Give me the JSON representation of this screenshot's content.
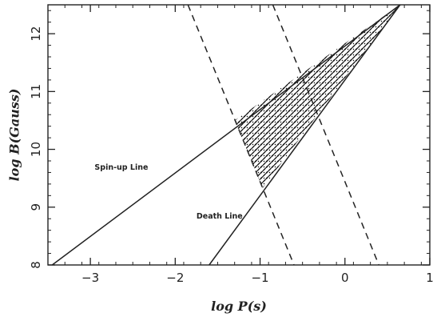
{
  "chart_data": {
    "type": "line",
    "xlabel": "log P(s)",
    "ylabel": "log B(Gauss)",
    "xlim": [
      -3.5,
      1.0
    ],
    "ylim": [
      8.0,
      12.5
    ],
    "xticks": [
      -3,
      -2,
      -1,
      0,
      1
    ],
    "yticks": [
      8,
      9,
      10,
      11,
      12
    ],
    "xtick_labels": [
      "−3",
      "−2",
      "−1",
      "0",
      "1"
    ],
    "ytick_labels": [
      "8",
      "9",
      "10",
      "11",
      "12"
    ],
    "grid": false,
    "series": [
      {
        "name": "Spin-up Line",
        "style": "solid",
        "points": [
          [
            -3.45,
            8.0
          ],
          [
            0.65,
            12.5
          ]
        ]
      },
      {
        "name": "Death Line",
        "style": "solid",
        "points": [
          [
            -1.6,
            8.0
          ],
          [
            0.65,
            12.5
          ]
        ]
      },
      {
        "name": "",
        "style": "dashed",
        "points": [
          [
            -1.85,
            12.5
          ],
          [
            -0.6,
            8.0
          ]
        ]
      },
      {
        "name": "",
        "style": "dashed",
        "points": [
          [
            -0.85,
            12.5
          ],
          [
            0.4,
            8.0
          ]
        ]
      }
    ],
    "shaded_region": [
      [
        -1.3,
        10.5
      ],
      [
        0.65,
        12.5
      ],
      [
        -0.97,
        9.33
      ]
    ],
    "annotations": [
      {
        "text": "Spin-up Line",
        "x": -2.95,
        "y": 9.65
      },
      {
        "text": "Death Line",
        "x": -1.75,
        "y": 8.8
      }
    ]
  }
}
